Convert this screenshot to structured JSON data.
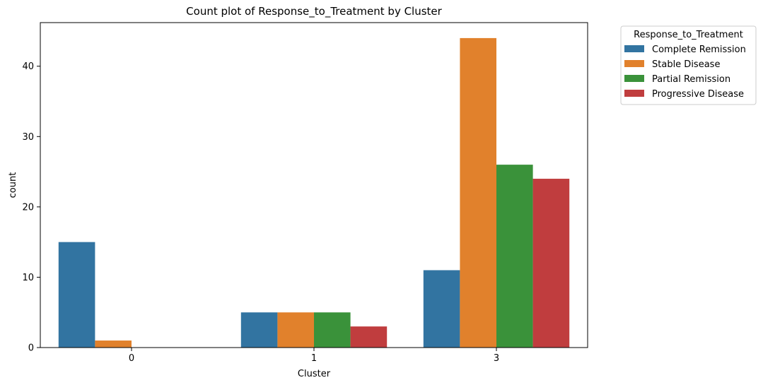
{
  "chart_data": {
    "type": "bar",
    "title": "Count plot of Response_to_Treatment by Cluster",
    "xlabel": "Cluster",
    "ylabel": "count",
    "categories": [
      "0",
      "1",
      "3"
    ],
    "ylim": [
      0,
      46.2
    ],
    "yticks": [
      0,
      10,
      20,
      30,
      40
    ],
    "grid": false,
    "legend_title": "Response_to_Treatment",
    "legend_position": "outside-top-right",
    "series": [
      {
        "name": "Complete Remission",
        "color": "#3274a1",
        "values": [
          15,
          5,
          11
        ]
      },
      {
        "name": "Stable Disease",
        "color": "#e1812c",
        "values": [
          1,
          5,
          44
        ]
      },
      {
        "name": "Partial Remission",
        "color": "#3a923a",
        "values": [
          0,
          5,
          26
        ]
      },
      {
        "name": "Progressive Disease",
        "color": "#c03d3e",
        "values": [
          0,
          3,
          24
        ]
      }
    ]
  }
}
